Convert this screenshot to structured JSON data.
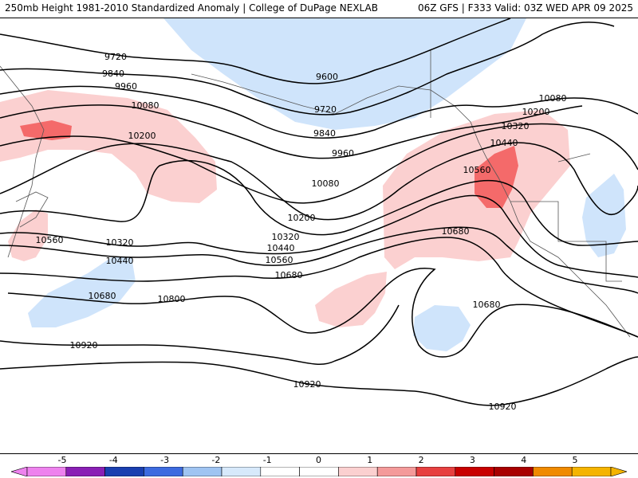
{
  "header": {
    "title": "250mb Height 1981-2010 Standardized Anomaly | College of DuPage NEXLAB",
    "model_info": "06Z GFS | F333 Valid: 03Z WED APR 09 2025"
  },
  "map": {
    "contour_labels": [
      {
        "text": "9720"
      },
      {
        "text": "9840"
      },
      {
        "text": "9960"
      },
      {
        "text": "10080"
      },
      {
        "text": "10200"
      },
      {
        "text": "10320"
      },
      {
        "text": "10440"
      },
      {
        "text": "10560"
      },
      {
        "text": "10680"
      },
      {
        "text": "10800"
      },
      {
        "text": "10920"
      },
      {
        "text": "10920"
      },
      {
        "text": "10920"
      },
      {
        "text": "9600"
      },
      {
        "text": "9720"
      },
      {
        "text": "9840"
      },
      {
        "text": "9960"
      },
      {
        "text": "10080"
      },
      {
        "text": "10200"
      },
      {
        "text": "10320"
      },
      {
        "text": "10440"
      },
      {
        "text": "10560"
      },
      {
        "text": "10680"
      },
      {
        "text": "10680"
      },
      {
        "text": "10080"
      },
      {
        "text": "10200"
      },
      {
        "text": "10320"
      },
      {
        "text": "10440"
      },
      {
        "text": "10560"
      },
      {
        "text": "10680"
      }
    ],
    "colors": {
      "anomaly_neg1": "#cfe4fb",
      "anomaly_pos1": "#fbd0d0",
      "anomaly_pos2": "#f46a6a",
      "contour": "#000000",
      "coastline": "#555555"
    }
  },
  "legend": {
    "ticks": [
      "-5",
      "-4",
      "-3",
      "-2",
      "-1",
      "0",
      "1",
      "2",
      "3",
      "4",
      "5"
    ],
    "colors": [
      "#ee82ee",
      "#8a1fb5",
      "#1a3fb0",
      "#3d6be0",
      "#9fc4f2",
      "#d7e9fb",
      "#ffffff",
      "#ffffff",
      "#fbd0d0",
      "#f49a9a",
      "#e74040",
      "#c80000",
      "#a80000",
      "#f08a00",
      "#f5b400"
    ]
  }
}
